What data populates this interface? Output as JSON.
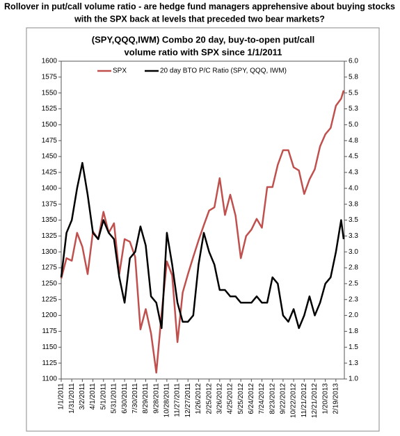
{
  "chart_data": {
    "type": "line",
    "title_lines": [
      "Rollover in put/call volume ratio - are hedge fund managers apprehensive about buying stocks",
      "with the SPX back at levels that preceded two bear markets?"
    ],
    "subtitle_lines": [
      "(SPY,QQQ,IWM) Combo 20 day, buy-to-open put/call",
      "volume ratio with SPX since 1/1/2011"
    ],
    "x": [
      "1/1/2011",
      "1/16/2011",
      "1/31/2011",
      "2/15/2011",
      "3/2/2011",
      "3/17/2011",
      "4/1/2011",
      "4/16/2011",
      "5/1/2011",
      "5/16/2011",
      "5/31/2011",
      "6/15/2011",
      "6/30/2011",
      "7/15/2011",
      "7/30/2011",
      "8/14/2011",
      "8/29/2011",
      "9/13/2011",
      "9/28/2011",
      "10/13/2011",
      "10/28/2011",
      "11/12/2011",
      "11/27/2011",
      "12/12/2011",
      "12/27/2011",
      "1/11/2012",
      "1/26/2012",
      "2/10/2012",
      "2/25/2012",
      "3/11/2012",
      "3/26/2012",
      "4/10/2012",
      "4/25/2012",
      "5/10/2012",
      "5/25/2012",
      "6/9/2012",
      "6/24/2012",
      "7/9/2012",
      "7/24/2012",
      "8/8/2012",
      "8/23/2012",
      "9/7/2012",
      "9/22/2012",
      "10/7/2012",
      "10/22/2012",
      "11/6/2012",
      "11/21/2012",
      "12/6/2012",
      "12/21/2012",
      "1/5/2013",
      "1/20/2013",
      "2/4/2013",
      "2/19/2013",
      "3/6/2013",
      "3/13/2013"
    ],
    "series": [
      {
        "name": "SPX",
        "color": "#c0504d",
        "axis": "y",
        "values": [
          1258,
          1290,
          1286,
          1330,
          1308,
          1265,
          1332,
          1320,
          1363,
          1330,
          1345,
          1265,
          1320,
          1316,
          1292,
          1178,
          1210,
          1172,
          1110,
          1203,
          1285,
          1263,
          1158,
          1236,
          1265,
          1292,
          1318,
          1342,
          1365,
          1370,
          1416,
          1358,
          1390,
          1357,
          1290,
          1325,
          1335,
          1352,
          1338,
          1402,
          1402,
          1437,
          1460,
          1460,
          1433,
          1428,
          1391,
          1414,
          1430,
          1466,
          1485,
          1495,
          1530,
          1541,
          1554
        ]
      },
      {
        "name": "20 day BTO P/C Ratio (SPY, QQQ, IWM)",
        "color": "#000000",
        "axis": "y2",
        "values": [
          2.6,
          3.3,
          3.5,
          4.0,
          4.4,
          3.9,
          3.3,
          3.2,
          3.5,
          3.3,
          3.2,
          2.6,
          2.2,
          2.9,
          3.0,
          3.4,
          3.1,
          2.3,
          2.2,
          1.8,
          3.3,
          2.8,
          2.2,
          1.9,
          1.9,
          2.0,
          2.8,
          3.3,
          3.0,
          2.8,
          2.4,
          2.4,
          2.3,
          2.3,
          2.2,
          2.2,
          2.2,
          2.3,
          2.2,
          2.2,
          2.6,
          2.5,
          2.0,
          1.9,
          2.1,
          1.8,
          2.0,
          2.3,
          2.0,
          2.2,
          2.5,
          2.6,
          3.0,
          3.5,
          3.2
        ]
      }
    ],
    "xlim": [
      "1/1/2011",
      "3/15/2013"
    ],
    "xticks": [
      "1/1/2011",
      "1/31/2011",
      "3/2/2011",
      "4/1/2011",
      "5/1/2011",
      "5/31/2011",
      "6/30/2011",
      "7/30/2011",
      "8/29/2011",
      "9/28/2011",
      "10/28/2011",
      "11/27/2011",
      "12/27/2011",
      "1/26/2012",
      "2/25/2012",
      "3/26/2012",
      "4/25/2012",
      "5/25/2012",
      "6/24/2012",
      "7/24/2012",
      "8/23/2012",
      "9/22/2012",
      "10/22/2012",
      "11/21/2012",
      "12/21/2012",
      "1/20/2013",
      "2/19/2013"
    ],
    "ylim": [
      1100,
      1600
    ],
    "yticks": [
      1100,
      1125,
      1150,
      1175,
      1200,
      1225,
      1250,
      1275,
      1300,
      1325,
      1350,
      1375,
      1400,
      1425,
      1450,
      1475,
      1500,
      1525,
      1550,
      1575,
      1600
    ],
    "y2lim": [
      1,
      6
    ],
    "y2ticks": [
      {
        "value": 1,
        "label": "1.0"
      },
      {
        "value": 1.25,
        "label": "1.3"
      },
      1.5,
      {
        "value": 1.75,
        "label": "1.8"
      },
      {
        "value": 2,
        "label": "2.0"
      },
      {
        "value": 2.25,
        "label": "2.3"
      },
      2.5,
      {
        "value": 2.75,
        "label": "2.8"
      },
      {
        "value": 3,
        "label": "3.0"
      },
      {
        "value": 3.25,
        "label": "3.3"
      },
      3.5,
      {
        "value": 3.75,
        "label": "3.8"
      },
      {
        "value": 4,
        "label": "4.0"
      },
      {
        "value": 4.25,
        "label": "4.3"
      },
      4.5,
      {
        "value": 4.75,
        "label": "4.8"
      },
      {
        "value": 5,
        "label": "5.0"
      },
      {
        "value": 5.25,
        "label": "5.3"
      },
      5.5,
      {
        "value": 5.75,
        "label": "5.8"
      },
      {
        "value": 6,
        "label": "6.0"
      }
    ],
    "grid": false,
    "legend": "top"
  }
}
